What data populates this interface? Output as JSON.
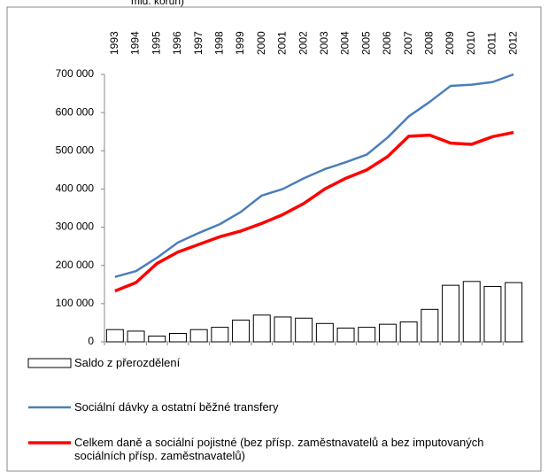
{
  "chart_data": {
    "type": "bar_line",
    "title": "mld. korun)",
    "categories": [
      "1993",
      "1994",
      "1995",
      "1996",
      "1997",
      "1998",
      "1999",
      "2000",
      "2001",
      "2002",
      "2003",
      "2004",
      "2005",
      "2006",
      "2007",
      "2008",
      "2009",
      "2010",
      "2011",
      "2012"
    ],
    "series": [
      {
        "name": "Saldo z přerozdělení",
        "type": "bar",
        "color": "#ffffff",
        "values": [
          32000,
          28000,
          15000,
          22000,
          32000,
          38000,
          57000,
          70000,
          65000,
          62000,
          48000,
          36000,
          38000,
          46000,
          52000,
          85000,
          148000,
          158000,
          145000,
          155000
        ]
      },
      {
        "name": "Sociální dávky a ostatní běžné transfery",
        "type": "line",
        "color": "#4a7ebb",
        "values": [
          170000,
          185000,
          220000,
          260000,
          285000,
          308000,
          340000,
          383000,
          400000,
          428000,
          452000,
          470000,
          490000,
          535000,
          590000,
          628000,
          670000,
          673000,
          680000,
          700000
        ]
      },
      {
        "name": "Celkem daně a sociální pojistné (bez přísp. zaměstnavatelů a bez imputovaných sociálních přísp. zaměstnavatelů)",
        "type": "line",
        "color": "#ff0000",
        "values": [
          133000,
          155000,
          205000,
          235000,
          255000,
          275000,
          290000,
          310000,
          333000,
          362000,
          400000,
          428000,
          450000,
          485000,
          538000,
          541000,
          520000,
          517000,
          537000,
          548000
        ]
      }
    ],
    "ylim": [
      0,
      700000
    ],
    "yticks": [
      0,
      {
        "value": 100000,
        "label": "100 000"
      },
      {
        "value": 200000,
        "label": "200 000"
      },
      {
        "value": 300000,
        "label": "300 000"
      },
      {
        "value": 400000,
        "label": "400 000"
      },
      {
        "value": 500000,
        "label": "500 000"
      },
      {
        "value": 600000,
        "label": "600 000"
      },
      {
        "value": 700000,
        "label": "700 000"
      }
    ],
    "grid": false,
    "legend": "bottom"
  }
}
